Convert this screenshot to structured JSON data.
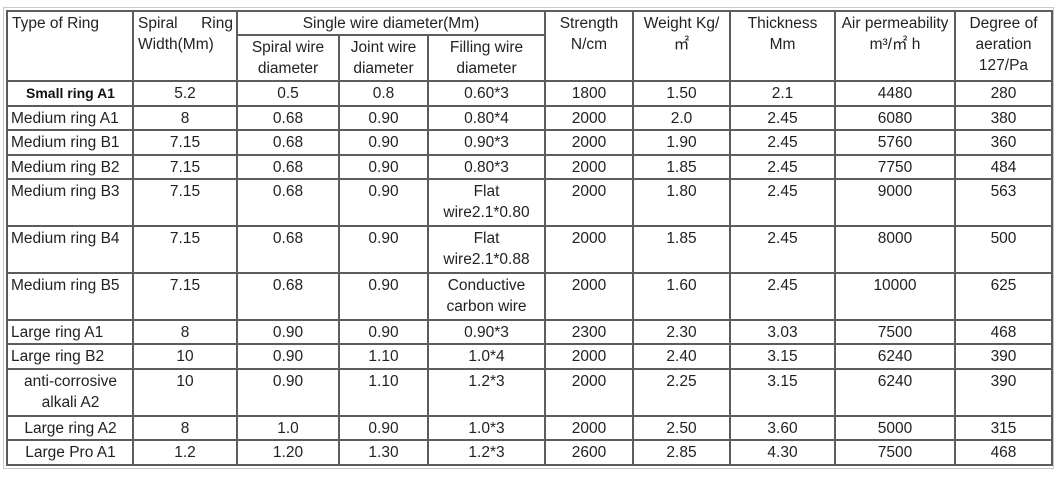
{
  "headers": {
    "type_of_ring": "Type of Ring",
    "spiral_ring_width_a": "Spiral",
    "spiral_ring_width_b": "Ring",
    "spiral_ring_width_c": "Width(Mm)",
    "single_wire_diameter": "Single wire diameter(Mm)",
    "spiral_wire_diameter": "Spiral wire diameter",
    "joint_wire_diameter": "Joint wire diameter",
    "filling_wire_diameter": "Filling wire diameter",
    "strength": "Strength N/cm",
    "weight": "Weight Kg/㎡",
    "thickness": "Thickness Mm",
    "air_permeability": "Air permeability m³/㎡ h",
    "degree_of_aeration": "Degree of aeration 127/Pa"
  },
  "rows": [
    {
      "type": "Small ring A1",
      "width": "5.2",
      "spiral": "0.5",
      "joint": "0.8",
      "filling": "0.60*3",
      "strength": "1800",
      "weight": "1.50",
      "thickness": "2.1",
      "air": "4480",
      "aeration": "280"
    },
    {
      "type": "Medium ring A1",
      "width": "8",
      "spiral": "0.68",
      "joint": "0.90",
      "filling": "0.80*4",
      "strength": "2000",
      "weight": "2.0",
      "thickness": "2.45",
      "air": "6080",
      "aeration": "380"
    },
    {
      "type": "Medium ring B1",
      "width": "7.15",
      "spiral": "0.68",
      "joint": "0.90",
      "filling": "0.90*3",
      "strength": "2000",
      "weight": "1.90",
      "thickness": "2.45",
      "air": "5760",
      "aeration": "360"
    },
    {
      "type": "Medium ring B2",
      "width": "7.15",
      "spiral": "0.68",
      "joint": "0.90",
      "filling": "0.80*3",
      "strength": "2000",
      "weight": "1.85",
      "thickness": "2.45",
      "air": "7750",
      "aeration": "484"
    },
    {
      "type": "Medium ring B3",
      "width": "7.15",
      "spiral": "0.68",
      "joint": "0.90",
      "filling": "Flat wire2.1*0.80",
      "strength": "2000",
      "weight": "1.80",
      "thickness": "2.45",
      "air": "9000",
      "aeration": "563"
    },
    {
      "type": "Medium ring B4",
      "width": "7.15",
      "spiral": "0.68",
      "joint": "0.90",
      "filling": "Flat wire2.1*0.88",
      "strength": "2000",
      "weight": "1.85",
      "thickness": "2.45",
      "air": "8000",
      "aeration": "500"
    },
    {
      "type": "Medium ring B5",
      "width": "7.15",
      "spiral": "0.68",
      "joint": "0.90",
      "filling": "Conductive carbon wire",
      "strength": "2000",
      "weight": "1.60",
      "thickness": "2.45",
      "air": "10000",
      "aeration": "625"
    },
    {
      "type": "Large ring A1",
      "width": "8",
      "spiral": "0.90",
      "joint": "0.90",
      "filling": "0.90*3",
      "strength": "2300",
      "weight": "2.30",
      "thickness": "3.03",
      "air": "7500",
      "aeration": "468"
    },
    {
      "type": "Large ring B2",
      "width": "10",
      "spiral": "0.90",
      "joint": "1.10",
      "filling": "1.0*4",
      "strength": "2000",
      "weight": "2.40",
      "thickness": "3.15",
      "air": "6240",
      "aeration": "390"
    },
    {
      "type": "anti-corrosive alkali A2",
      "width": "10",
      "spiral": "0.90",
      "joint": "1.10",
      "filling": "1.2*3",
      "strength": "2000",
      "weight": "2.25",
      "thickness": "3.15",
      "air": "6240",
      "aeration": "390"
    },
    {
      "type": "Large ring A2",
      "width": "8",
      "spiral": "1.0",
      "joint": "0.90",
      "filling": "1.0*3",
      "strength": "2000",
      "weight": "2.50",
      "thickness": "3.60",
      "air": "5000",
      "aeration": "315"
    },
    {
      "type": "Large Pro A1",
      "width": "1.2",
      "spiral": "1.20",
      "joint": "1.30",
      "filling": "1.2*3",
      "strength": "2600",
      "weight": "2.85",
      "thickness": "4.30",
      "air": "7500",
      "aeration": "468"
    }
  ]
}
